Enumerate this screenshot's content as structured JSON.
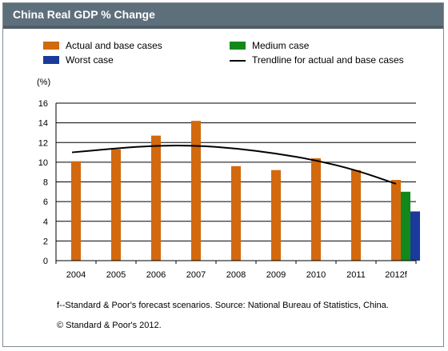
{
  "title": "China Real GDP % Change",
  "legend": [
    {
      "label": "Actual and base cases",
      "color": "#d2690e",
      "kind": "swatch"
    },
    {
      "label": "Medium case",
      "color": "#13881a",
      "kind": "swatch"
    },
    {
      "label": "Worst case",
      "color": "#1a3a9c",
      "kind": "swatch"
    },
    {
      "label": "Trendline for actual and base cases",
      "color": "#000000",
      "kind": "line"
    }
  ],
  "footnote": "f--Standard & Poor's forecast scenarios. Source: National Bureau of Statistics, China.",
  "copyright": "© Standard & Poor's 2012.",
  "chart_data": {
    "type": "bar",
    "title": "China Real GDP % Change",
    "ylabel": "(%)",
    "xlabel": "",
    "ylim": [
      0,
      16
    ],
    "yticks": [
      0,
      2,
      4,
      6,
      8,
      10,
      12,
      14,
      16
    ],
    "grid": true,
    "legend_position": "top",
    "categories": [
      "2004",
      "2005",
      "2006",
      "2007",
      "2008",
      "2009",
      "2010",
      "2011",
      "2012f"
    ],
    "series": [
      {
        "name": "Actual and base cases",
        "color": "#d2690e",
        "values": [
          10.1,
          11.3,
          12.7,
          14.2,
          9.6,
          9.2,
          10.4,
          9.2,
          8.2
        ]
      },
      {
        "name": "Medium case",
        "color": "#13881a",
        "values": [
          null,
          null,
          null,
          null,
          null,
          null,
          null,
          null,
          7.0
        ]
      },
      {
        "name": "Worst case",
        "color": "#1a3a9c",
        "values": [
          null,
          null,
          null,
          null,
          null,
          null,
          null,
          null,
          5.0
        ]
      },
      {
        "name": "Trendline for actual and base cases",
        "type": "line",
        "color": "#000000",
        "values": [
          11.0,
          11.4,
          11.7,
          11.7,
          11.4,
          10.9,
          10.2,
          9.2,
          7.8
        ]
      }
    ]
  }
}
